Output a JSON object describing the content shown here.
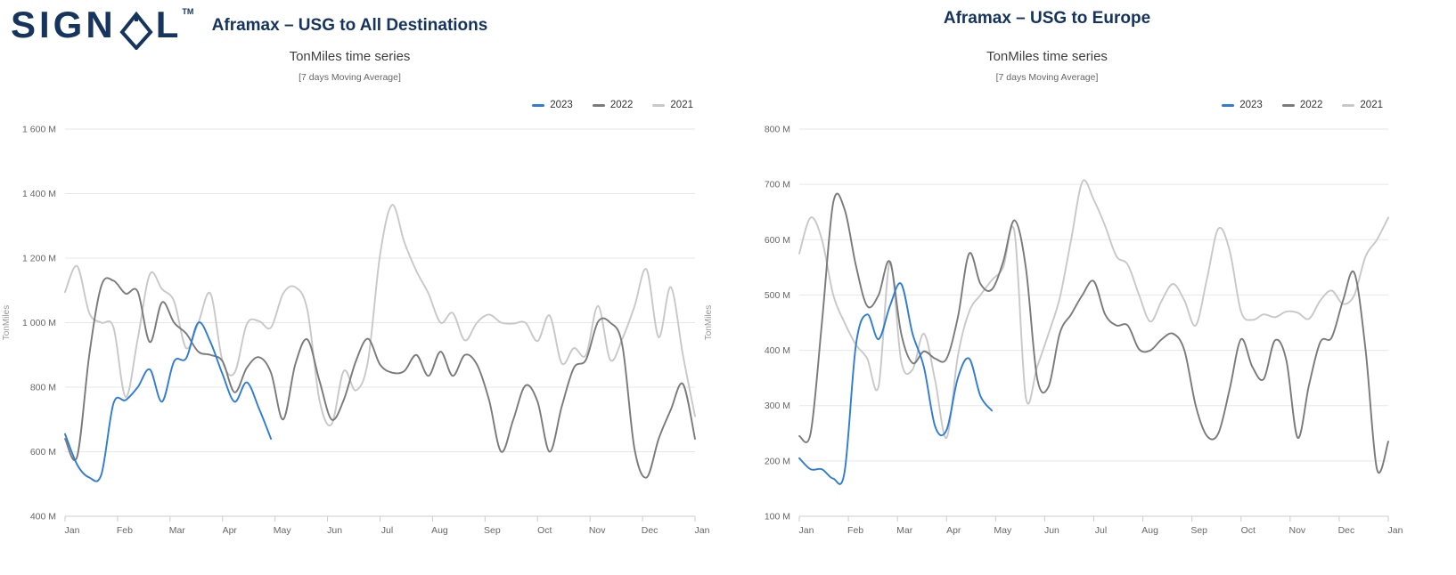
{
  "logo": {
    "word_prefix": "SIGN",
    "word_suffix": "L",
    "trademark": "TM"
  },
  "chart_data": [
    {
      "type": "line",
      "title": "Aframax – USG to All Destinations",
      "subtitle": "TonMiles time series",
      "note": "[7 days Moving Average]",
      "xlabel": "",
      "ylabel": "TonMiles",
      "x_tick_labels": [
        "Jan",
        "Feb",
        "Mar",
        "Apr",
        "May",
        "Jun",
        "Jul",
        "Aug",
        "Sep",
        "Oct",
        "Nov",
        "Dec",
        "Jan"
      ],
      "y_tick_labels": [
        "400 M",
        "600 M",
        "800 M",
        "1 000 M",
        "1 200 M",
        "1 400 M",
        "1 600 M"
      ],
      "ylim": [
        400,
        1600
      ],
      "ytick_step": 200,
      "unit": "million ton-miles",
      "grid": "horizontal",
      "legend_position": "top-right",
      "sampling": "weekly (values are millions of TonMiles, 7-day moving average)",
      "weeks_per_year": 52,
      "series": [
        {
          "name": "2023",
          "color": "#2e7cd6",
          "values": [
            655,
            560,
            520,
            530,
            750,
            760,
            800,
            855,
            755,
            880,
            890,
            1000,
            940,
            840,
            755,
            815,
            735,
            640
          ]
        },
        {
          "name": "2022",
          "color": "#7a7a7a",
          "values": [
            640,
            585,
            900,
            1115,
            1130,
            1090,
            1096,
            940,
            1063,
            1000,
            966,
            910,
            900,
            880,
            784,
            860,
            893,
            845,
            700,
            870,
            948,
            820,
            700,
            760,
            880,
            950,
            870,
            845,
            850,
            900,
            835,
            910,
            835,
            900,
            870,
            760,
            600,
            700,
            805,
            755,
            600,
            740,
            860,
            885,
            1003,
            1000,
            930,
            610,
            520,
            640,
            730,
            810,
            640
          ]
        },
        {
          "name": "2021",
          "color": "#c8c8c8",
          "values": [
            1095,
            1175,
            1030,
            1000,
            985,
            770,
            950,
            1150,
            1104,
            1066,
            921,
            1000,
            1090,
            880,
            845,
            995,
            1005,
            985,
            1090,
            1110,
            1040,
            760,
            685,
            850,
            790,
            880,
            1210,
            1365,
            1250,
            1160,
            1090,
            1000,
            1030,
            945,
            1000,
            1025,
            1000,
            997,
            1000,
            943,
            1022,
            874,
            921,
            900,
            1052,
            885,
            950,
            1050,
            1165,
            955,
            1110,
            900,
            710
          ]
        }
      ]
    },
    {
      "type": "line",
      "title": "Aframax – USG to Europe",
      "subtitle": "TonMiles time series",
      "note": "[7 days Moving Average]",
      "xlabel": "",
      "ylabel": "TonMiles",
      "x_tick_labels": [
        "Jan",
        "Feb",
        "Mar",
        "Apr",
        "May",
        "Jun",
        "Jul",
        "Aug",
        "Sep",
        "Oct",
        "Nov",
        "Dec",
        "Jan"
      ],
      "y_tick_labels": [
        "100 M",
        "200 M",
        "300 M",
        "400 M",
        "500 M",
        "600 M",
        "700 M",
        "800 M"
      ],
      "ylim": [
        100,
        800
      ],
      "ytick_step": 100,
      "unit": "million ton-miles",
      "grid": "horizontal",
      "legend_position": "top-right",
      "sampling": "weekly (values are millions of TonMiles, 7-day moving average)",
      "weeks_per_year": 52,
      "series": [
        {
          "name": "2023",
          "color": "#2e7cd6",
          "values": [
            205,
            185,
            185,
            168,
            180,
            410,
            465,
            420,
            480,
            520,
            430,
            370,
            262,
            256,
            350,
            385,
            317,
            291
          ]
        },
        {
          "name": "2022",
          "color": "#7a7a7a",
          "values": [
            245,
            250,
            450,
            667,
            655,
            553,
            480,
            500,
            560,
            430,
            377,
            398,
            385,
            385,
            460,
            575,
            520,
            510,
            560,
            635,
            550,
            350,
            334,
            431,
            465,
            500,
            525,
            465,
            445,
            445,
            402,
            400,
            420,
            430,
            400,
            300,
            245,
            250,
            330,
            420,
            370,
            348,
            418,
            382,
            242,
            337,
            415,
            423,
            490,
            540,
            400,
            185,
            235
          ]
        },
        {
          "name": "2021",
          "color": "#c8c8c8",
          "values": [
            575,
            640,
            600,
            500,
            450,
            410,
            385,
            335,
            560,
            380,
            365,
            430,
            345,
            242,
            390,
            470,
            500,
            527,
            550,
            614,
            315,
            370,
            430,
            495,
            600,
            705,
            672,
            625,
            570,
            555,
            500,
            452,
            490,
            520,
            490,
            445,
            530,
            620,
            580,
            470,
            455,
            465,
            460,
            470,
            468,
            457,
            490,
            508,
            484,
            500,
            570,
            600,
            640
          ]
        }
      ]
    }
  ]
}
